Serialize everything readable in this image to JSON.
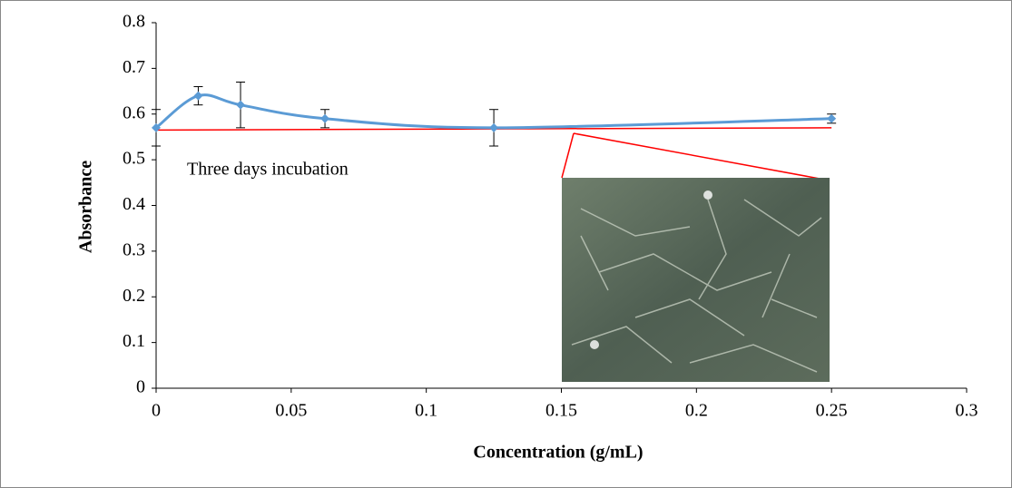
{
  "chart_data": {
    "type": "line",
    "x_label": "Concentration (g/mL)",
    "y_label": "Absorbance",
    "annotation": "Three days incubation",
    "x": [
      0,
      0.0156,
      0.03125,
      0.0625,
      0.125,
      0.25
    ],
    "series": [
      {
        "color": "#5b9bd5",
        "values": [
          0.57,
          0.64,
          0.62,
          0.59,
          0.57,
          0.59
        ],
        "errors": [
          0.04,
          0.02,
          0.05,
          0.02,
          0.04,
          0.01
        ]
      }
    ],
    "trendline": {
      "color": "#ff0000",
      "x": [
        0,
        0.25
      ],
      "values": [
        0.565,
        0.57
      ]
    },
    "xlim": [
      0,
      0.3
    ],
    "xticks": [
      0,
      0.05,
      0.1,
      0.15,
      0.2,
      0.25,
      0.3
    ],
    "ylim": [
      0,
      0.8
    ],
    "yticks": [
      0,
      0.1,
      0.2,
      0.3,
      0.4,
      0.5,
      0.6,
      0.7,
      0.8
    ],
    "smooth": true
  }
}
